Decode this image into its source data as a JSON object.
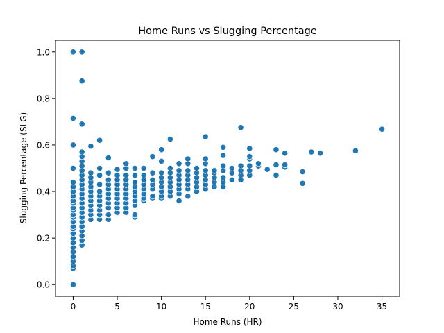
{
  "chart_data": {
    "type": "scatter",
    "title": "Home Runs vs Slugging Percentage",
    "xlabel": "Home Runs (HR)",
    "ylabel": "Slugging Percentage (SLG)",
    "xlim": [
      -2,
      37
    ],
    "ylim": [
      -0.05,
      1.05
    ],
    "xticks": [
      0,
      5,
      10,
      15,
      20,
      25,
      30,
      35
    ],
    "yticks": [
      0.0,
      0.2,
      0.4,
      0.6,
      0.8,
      1.0
    ],
    "ytick_labels": [
      "0.0",
      "0.2",
      "0.4",
      "0.6",
      "0.8",
      "1.0"
    ],
    "grid": false,
    "marker_color": "#1f77b4",
    "marker_edge": "#ffffff",
    "points": [
      {
        "x": 0,
        "y": 0.0
      },
      {
        "x": 0,
        "y": 0.07
      },
      {
        "x": 0,
        "y": 0.08
      },
      {
        "x": 0,
        "y": 0.1
      },
      {
        "x": 0,
        "y": 0.12
      },
      {
        "x": 0,
        "y": 0.14
      },
      {
        "x": 0,
        "y": 0.16
      },
      {
        "x": 0,
        "y": 0.18
      },
      {
        "x": 0,
        "y": 0.2
      },
      {
        "x": 0,
        "y": 0.22
      },
      {
        "x": 0,
        "y": 0.24
      },
      {
        "x": 0,
        "y": 0.25
      },
      {
        "x": 0,
        "y": 0.27
      },
      {
        "x": 0,
        "y": 0.29
      },
      {
        "x": 0,
        "y": 0.3
      },
      {
        "x": 0,
        "y": 0.32
      },
      {
        "x": 0,
        "y": 0.33
      },
      {
        "x": 0,
        "y": 0.35
      },
      {
        "x": 0,
        "y": 0.36
      },
      {
        "x": 0,
        "y": 0.38
      },
      {
        "x": 0,
        "y": 0.4
      },
      {
        "x": 0,
        "y": 0.42
      },
      {
        "x": 0,
        "y": 0.44
      },
      {
        "x": 0,
        "y": 0.5
      },
      {
        "x": 0,
        "y": 0.6
      },
      {
        "x": 0,
        "y": 0.715
      },
      {
        "x": 0,
        "y": 1.0
      },
      {
        "x": 1,
        "y": 0.17
      },
      {
        "x": 1,
        "y": 0.19
      },
      {
        "x": 1,
        "y": 0.21
      },
      {
        "x": 1,
        "y": 0.23
      },
      {
        "x": 1,
        "y": 0.25
      },
      {
        "x": 1,
        "y": 0.27
      },
      {
        "x": 1,
        "y": 0.29
      },
      {
        "x": 1,
        "y": 0.31
      },
      {
        "x": 1,
        "y": 0.33
      },
      {
        "x": 1,
        "y": 0.35
      },
      {
        "x": 1,
        "y": 0.37
      },
      {
        "x": 1,
        "y": 0.39
      },
      {
        "x": 1,
        "y": 0.41
      },
      {
        "x": 1,
        "y": 0.43
      },
      {
        "x": 1,
        "y": 0.45
      },
      {
        "x": 1,
        "y": 0.47
      },
      {
        "x": 1,
        "y": 0.49
      },
      {
        "x": 1,
        "y": 0.51
      },
      {
        "x": 1,
        "y": 0.53
      },
      {
        "x": 1,
        "y": 0.55
      },
      {
        "x": 1,
        "y": 0.57
      },
      {
        "x": 1,
        "y": 0.69
      },
      {
        "x": 1,
        "y": 0.875
      },
      {
        "x": 1,
        "y": 1.0
      },
      {
        "x": 2,
        "y": 0.28
      },
      {
        "x": 2,
        "y": 0.3
      },
      {
        "x": 2,
        "y": 0.32
      },
      {
        "x": 2,
        "y": 0.34
      },
      {
        "x": 2,
        "y": 0.36
      },
      {
        "x": 2,
        "y": 0.38
      },
      {
        "x": 2,
        "y": 0.4
      },
      {
        "x": 2,
        "y": 0.42
      },
      {
        "x": 2,
        "y": 0.44
      },
      {
        "x": 2,
        "y": 0.46
      },
      {
        "x": 2,
        "y": 0.48
      },
      {
        "x": 2,
        "y": 0.595
      },
      {
        "x": 3,
        "y": 0.28
      },
      {
        "x": 3,
        "y": 0.3
      },
      {
        "x": 3,
        "y": 0.32
      },
      {
        "x": 3,
        "y": 0.34
      },
      {
        "x": 3,
        "y": 0.36
      },
      {
        "x": 3,
        "y": 0.38
      },
      {
        "x": 3,
        "y": 0.4
      },
      {
        "x": 3,
        "y": 0.43
      },
      {
        "x": 3,
        "y": 0.47
      },
      {
        "x": 3,
        "y": 0.5
      },
      {
        "x": 3,
        "y": 0.62
      },
      {
        "x": 4,
        "y": 0.28
      },
      {
        "x": 4,
        "y": 0.3
      },
      {
        "x": 4,
        "y": 0.33
      },
      {
        "x": 4,
        "y": 0.35
      },
      {
        "x": 4,
        "y": 0.37
      },
      {
        "x": 4,
        "y": 0.39
      },
      {
        "x": 4,
        "y": 0.41
      },
      {
        "x": 4,
        "y": 0.43
      },
      {
        "x": 4,
        "y": 0.45
      },
      {
        "x": 4,
        "y": 0.48
      },
      {
        "x": 4,
        "y": 0.545
      },
      {
        "x": 5,
        "y": 0.31
      },
      {
        "x": 5,
        "y": 0.33
      },
      {
        "x": 5,
        "y": 0.35
      },
      {
        "x": 5,
        "y": 0.37
      },
      {
        "x": 5,
        "y": 0.39
      },
      {
        "x": 5,
        "y": 0.41
      },
      {
        "x": 5,
        "y": 0.43
      },
      {
        "x": 5,
        "y": 0.45
      },
      {
        "x": 5,
        "y": 0.47
      },
      {
        "x": 5,
        "y": 0.495
      },
      {
        "x": 6,
        "y": 0.31
      },
      {
        "x": 6,
        "y": 0.33
      },
      {
        "x": 6,
        "y": 0.35
      },
      {
        "x": 6,
        "y": 0.37
      },
      {
        "x": 6,
        "y": 0.39
      },
      {
        "x": 6,
        "y": 0.41
      },
      {
        "x": 6,
        "y": 0.43
      },
      {
        "x": 6,
        "y": 0.45
      },
      {
        "x": 6,
        "y": 0.47
      },
      {
        "x": 6,
        "y": 0.5
      },
      {
        "x": 6,
        "y": 0.52
      },
      {
        "x": 7,
        "y": 0.29
      },
      {
        "x": 7,
        "y": 0.3
      },
      {
        "x": 7,
        "y": 0.34
      },
      {
        "x": 7,
        "y": 0.36
      },
      {
        "x": 7,
        "y": 0.38
      },
      {
        "x": 7,
        "y": 0.4
      },
      {
        "x": 7,
        "y": 0.42
      },
      {
        "x": 7,
        "y": 0.44
      },
      {
        "x": 7,
        "y": 0.47
      },
      {
        "x": 7,
        "y": 0.5
      },
      {
        "x": 8,
        "y": 0.36
      },
      {
        "x": 8,
        "y": 0.37
      },
      {
        "x": 8,
        "y": 0.39
      },
      {
        "x": 8,
        "y": 0.41
      },
      {
        "x": 8,
        "y": 0.43
      },
      {
        "x": 8,
        "y": 0.45
      },
      {
        "x": 8,
        "y": 0.47
      },
      {
        "x": 8,
        "y": 0.5
      },
      {
        "x": 9,
        "y": 0.37
      },
      {
        "x": 9,
        "y": 0.38
      },
      {
        "x": 9,
        "y": 0.41
      },
      {
        "x": 9,
        "y": 0.43
      },
      {
        "x": 9,
        "y": 0.45
      },
      {
        "x": 9,
        "y": 0.48
      },
      {
        "x": 9,
        "y": 0.55
      },
      {
        "x": 10,
        "y": 0.37
      },
      {
        "x": 10,
        "y": 0.38
      },
      {
        "x": 10,
        "y": 0.4
      },
      {
        "x": 10,
        "y": 0.42
      },
      {
        "x": 10,
        "y": 0.44
      },
      {
        "x": 10,
        "y": 0.46
      },
      {
        "x": 10,
        "y": 0.48
      },
      {
        "x": 10,
        "y": 0.53
      },
      {
        "x": 10,
        "y": 0.58
      },
      {
        "x": 11,
        "y": 0.38
      },
      {
        "x": 11,
        "y": 0.4
      },
      {
        "x": 11,
        "y": 0.42
      },
      {
        "x": 11,
        "y": 0.44
      },
      {
        "x": 11,
        "y": 0.46
      },
      {
        "x": 11,
        "y": 0.48
      },
      {
        "x": 11,
        "y": 0.5
      },
      {
        "x": 11,
        "y": 0.625
      },
      {
        "x": 12,
        "y": 0.36
      },
      {
        "x": 12,
        "y": 0.39
      },
      {
        "x": 12,
        "y": 0.41
      },
      {
        "x": 12,
        "y": 0.43
      },
      {
        "x": 12,
        "y": 0.45
      },
      {
        "x": 12,
        "y": 0.47
      },
      {
        "x": 12,
        "y": 0.49
      },
      {
        "x": 12,
        "y": 0.52
      },
      {
        "x": 13,
        "y": 0.38
      },
      {
        "x": 13,
        "y": 0.41
      },
      {
        "x": 13,
        "y": 0.43
      },
      {
        "x": 13,
        "y": 0.45
      },
      {
        "x": 13,
        "y": 0.47
      },
      {
        "x": 13,
        "y": 0.49
      },
      {
        "x": 13,
        "y": 0.52
      },
      {
        "x": 13,
        "y": 0.54
      },
      {
        "x": 14,
        "y": 0.4
      },
      {
        "x": 14,
        "y": 0.42
      },
      {
        "x": 14,
        "y": 0.44
      },
      {
        "x": 14,
        "y": 0.46
      },
      {
        "x": 14,
        "y": 0.48
      },
      {
        "x": 14,
        "y": 0.5
      },
      {
        "x": 15,
        "y": 0.41
      },
      {
        "x": 15,
        "y": 0.43
      },
      {
        "x": 15,
        "y": 0.45
      },
      {
        "x": 15,
        "y": 0.47
      },
      {
        "x": 15,
        "y": 0.49
      },
      {
        "x": 15,
        "y": 0.52
      },
      {
        "x": 15,
        "y": 0.54
      },
      {
        "x": 15,
        "y": 0.635
      },
      {
        "x": 16,
        "y": 0.42
      },
      {
        "x": 16,
        "y": 0.44
      },
      {
        "x": 16,
        "y": 0.46
      },
      {
        "x": 16,
        "y": 0.48
      },
      {
        "x": 16,
        "y": 0.49
      },
      {
        "x": 17,
        "y": 0.42
      },
      {
        "x": 17,
        "y": 0.44
      },
      {
        "x": 17,
        "y": 0.46
      },
      {
        "x": 17,
        "y": 0.49
      },
      {
        "x": 17,
        "y": 0.51
      },
      {
        "x": 17,
        "y": 0.555
      },
      {
        "x": 17,
        "y": 0.59
      },
      {
        "x": 18,
        "y": 0.45
      },
      {
        "x": 18,
        "y": 0.48
      },
      {
        "x": 18,
        "y": 0.5
      },
      {
        "x": 19,
        "y": 0.45
      },
      {
        "x": 19,
        "y": 0.47
      },
      {
        "x": 19,
        "y": 0.49
      },
      {
        "x": 19,
        "y": 0.51
      },
      {
        "x": 19,
        "y": 0.675
      },
      {
        "x": 20,
        "y": 0.47
      },
      {
        "x": 20,
        "y": 0.49
      },
      {
        "x": 20,
        "y": 0.51
      },
      {
        "x": 20,
        "y": 0.54
      },
      {
        "x": 20,
        "y": 0.55
      },
      {
        "x": 20,
        "y": 0.585
      },
      {
        "x": 21,
        "y": 0.51
      },
      {
        "x": 21,
        "y": 0.52
      },
      {
        "x": 22,
        "y": 0.495
      },
      {
        "x": 23,
        "y": 0.47
      },
      {
        "x": 23,
        "y": 0.515
      },
      {
        "x": 23,
        "y": 0.58
      },
      {
        "x": 24,
        "y": 0.505
      },
      {
        "x": 24,
        "y": 0.515
      },
      {
        "x": 24,
        "y": 0.565
      },
      {
        "x": 26,
        "y": 0.435
      },
      {
        "x": 26,
        "y": 0.485
      },
      {
        "x": 27,
        "y": 0.57
      },
      {
        "x": 28,
        "y": 0.565
      },
      {
        "x": 32,
        "y": 0.575
      },
      {
        "x": 35,
        "y": 0.668
      }
    ]
  }
}
